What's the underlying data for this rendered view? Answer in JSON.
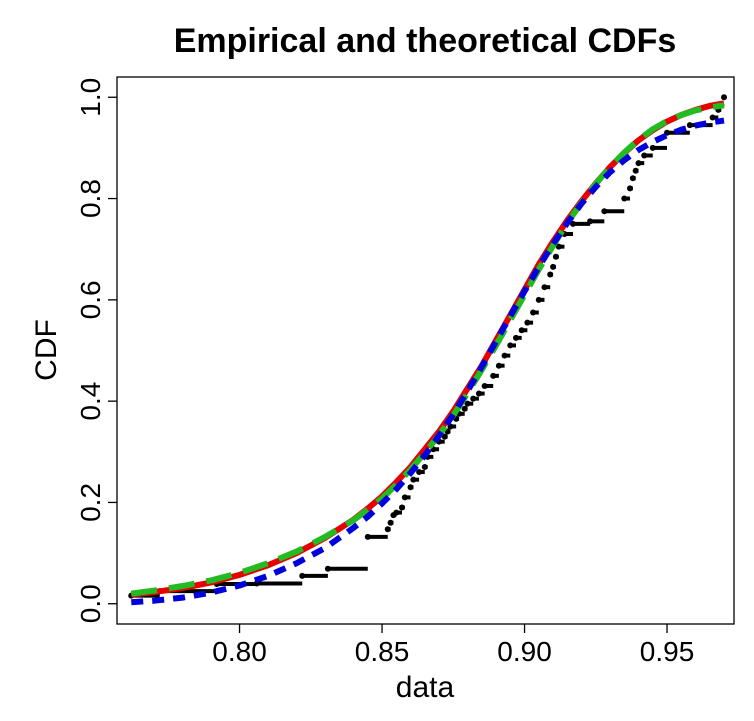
{
  "chart_data": {
    "type": "line",
    "title": "Empirical and theoretical CDFs",
    "xlabel": "data",
    "ylabel": "CDF",
    "xlim": [
      0.757,
      0.9735
    ],
    "ylim": [
      -0.04,
      1.04
    ],
    "xticks": [
      0.8,
      0.85,
      0.9,
      0.95
    ],
    "xtick_labels": [
      "0.80",
      "0.85",
      "0.90",
      "0.95"
    ],
    "yticks": [
      0.0,
      0.2,
      0.4,
      0.6,
      0.8,
      1.0
    ],
    "ytick_labels": [
      "0.0",
      "0.2",
      "0.4",
      "0.6",
      "0.8",
      "1.0"
    ],
    "grid": false,
    "series": [
      {
        "kind": "empirical-step",
        "color": "#000000",
        "x": [
          0.762,
          0.772,
          0.792,
          0.806,
          0.822,
          0.831,
          0.845,
          0.852,
          0.853,
          0.854,
          0.855,
          0.857,
          0.858,
          0.86,
          0.861,
          0.863,
          0.865,
          0.866,
          0.868,
          0.87,
          0.872,
          0.873,
          0.874,
          0.876,
          0.877,
          0.879,
          0.88,
          0.882,
          0.884,
          0.886,
          0.889,
          0.891,
          0.893,
          0.895,
          0.897,
          0.899,
          0.901,
          0.903,
          0.905,
          0.907,
          0.909,
          0.91,
          0.911,
          0.912,
          0.914,
          0.917,
          0.923,
          0.928,
          0.935,
          0.937,
          0.938,
          0.939,
          0.94,
          0.942,
          0.945,
          0.95,
          0.958,
          0.966,
          0.968,
          0.969,
          0.97
        ],
        "y": [
          0.016,
          0.025,
          0.039,
          0.04,
          0.055,
          0.069,
          0.132,
          0.147,
          0.16,
          0.175,
          0.18,
          0.19,
          0.21,
          0.23,
          0.245,
          0.26,
          0.27,
          0.29,
          0.305,
          0.32,
          0.33,
          0.34,
          0.35,
          0.365,
          0.375,
          0.385,
          0.395,
          0.405,
          0.415,
          0.43,
          0.45,
          0.47,
          0.49,
          0.51,
          0.525,
          0.54,
          0.555,
          0.575,
          0.6,
          0.625,
          0.65,
          0.665,
          0.685,
          0.705,
          0.73,
          0.75,
          0.755,
          0.775,
          0.8,
          0.82,
          0.84,
          0.855,
          0.87,
          0.885,
          0.9,
          0.93,
          0.945,
          0.96,
          0.975,
          0.985,
          1.0
        ]
      },
      {
        "kind": "curve",
        "color": "#e60000",
        "dash": "solid",
        "x": [
          0.762,
          0.77,
          0.78,
          0.79,
          0.8,
          0.81,
          0.82,
          0.83,
          0.84,
          0.845,
          0.85,
          0.855,
          0.86,
          0.865,
          0.87,
          0.875,
          0.88,
          0.885,
          0.89,
          0.895,
          0.9,
          0.905,
          0.91,
          0.915,
          0.92,
          0.925,
          0.93,
          0.935,
          0.94,
          0.945,
          0.95,
          0.955,
          0.96,
          0.965,
          0.97
        ],
        "y": [
          0.018,
          0.023,
          0.031,
          0.042,
          0.057,
          0.076,
          0.1,
          0.13,
          0.166,
          0.188,
          0.212,
          0.24,
          0.27,
          0.305,
          0.34,
          0.38,
          0.425,
          0.47,
          0.52,
          0.57,
          0.62,
          0.67,
          0.715,
          0.757,
          0.795,
          0.83,
          0.862,
          0.89,
          0.915,
          0.935,
          0.952,
          0.965,
          0.975,
          0.983,
          0.988
        ]
      },
      {
        "kind": "curve",
        "color": "#22bb22",
        "dash": "long-dash",
        "x": [
          0.762,
          0.77,
          0.78,
          0.79,
          0.8,
          0.81,
          0.82,
          0.83,
          0.84,
          0.845,
          0.85,
          0.855,
          0.86,
          0.865,
          0.87,
          0.875,
          0.88,
          0.885,
          0.89,
          0.895,
          0.9,
          0.905,
          0.91,
          0.915,
          0.92,
          0.925,
          0.93,
          0.935,
          0.94,
          0.945,
          0.95,
          0.955,
          0.96,
          0.965,
          0.97
        ],
        "y": [
          0.02,
          0.026,
          0.035,
          0.046,
          0.061,
          0.08,
          0.103,
          0.132,
          0.165,
          0.186,
          0.208,
          0.235,
          0.265,
          0.298,
          0.333,
          0.372,
          0.416,
          0.462,
          0.51,
          0.56,
          0.61,
          0.66,
          0.707,
          0.752,
          0.792,
          0.829,
          0.862,
          0.891,
          0.916,
          0.937,
          0.953,
          0.965,
          0.974,
          0.98,
          0.984
        ]
      },
      {
        "kind": "curve",
        "color": "#0000dd",
        "dash": "short-dash",
        "x": [
          0.762,
          0.77,
          0.78,
          0.79,
          0.8,
          0.81,
          0.82,
          0.83,
          0.84,
          0.845,
          0.85,
          0.855,
          0.86,
          0.865,
          0.87,
          0.875,
          0.88,
          0.885,
          0.89,
          0.895,
          0.9,
          0.905,
          0.91,
          0.915,
          0.92,
          0.925,
          0.93,
          0.935,
          0.94,
          0.945,
          0.95,
          0.955,
          0.96,
          0.965,
          0.97
        ],
        "y": [
          0.003,
          0.006,
          0.012,
          0.022,
          0.036,
          0.055,
          0.08,
          0.11,
          0.15,
          0.172,
          0.198,
          0.226,
          0.258,
          0.293,
          0.332,
          0.374,
          0.42,
          0.468,
          0.518,
          0.568,
          0.617,
          0.665,
          0.71,
          0.752,
          0.79,
          0.823,
          0.852,
          0.876,
          0.896,
          0.912,
          0.925,
          0.936,
          0.944,
          0.95,
          0.954
        ]
      }
    ]
  }
}
